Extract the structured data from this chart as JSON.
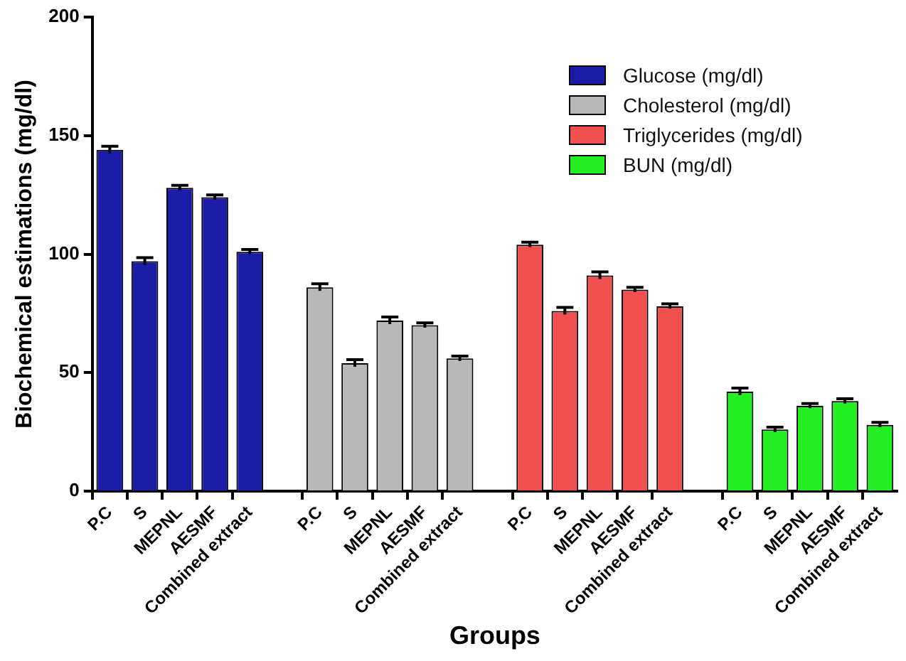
{
  "chart_data": {
    "type": "bar",
    "xlabel": "Groups",
    "ylabel": "Biochemical estimations (mg/dl)",
    "categories": [
      "P.C",
      "S",
      "MEPNL",
      "AESMF",
      "Combined extract",
      null,
      "P.C",
      "S",
      "MEPNL",
      "AESMF",
      "Combined extract",
      null,
      "P.C",
      "S",
      "MEPNL",
      "AESMF",
      "Combined extract",
      null,
      "P.C",
      "S",
      "MEPNL",
      "AESMF",
      "Combined extract"
    ],
    "series": [
      {
        "name": "Glucose (mg/dl)",
        "color": "#1c1ca8",
        "values": [
          144,
          97,
          128,
          124,
          101,
          null,
          null,
          null,
          null,
          null,
          null,
          null,
          null,
          null,
          null,
          null,
          null,
          null,
          null,
          null,
          null,
          null,
          null
        ],
        "errors": [
          1.5,
          1.5,
          1,
          1,
          1,
          null,
          null,
          null,
          null,
          null,
          null,
          null,
          null,
          null,
          null,
          null,
          null,
          null,
          null,
          null,
          null,
          null,
          null
        ]
      },
      {
        "name": "Cholesterol (mg/dl)",
        "color": "#b8b8b8",
        "values": [
          null,
          null,
          null,
          null,
          null,
          null,
          86,
          54,
          72,
          70,
          56,
          null,
          null,
          null,
          null,
          null,
          null,
          null,
          null,
          null,
          null,
          null,
          null
        ],
        "errors": [
          null,
          null,
          null,
          null,
          null,
          null,
          1.5,
          1.5,
          1.5,
          1,
          1,
          null,
          null,
          null,
          null,
          null,
          null,
          null,
          null,
          null,
          null,
          null,
          null
        ]
      },
      {
        "name": "Triglycerides (mg/dl)",
        "color": "#f05050",
        "values": [
          null,
          null,
          null,
          null,
          null,
          null,
          null,
          null,
          null,
          null,
          null,
          null,
          104,
          76,
          91,
          85,
          78,
          null,
          null,
          null,
          null,
          null,
          null
        ],
        "errors": [
          null,
          null,
          null,
          null,
          null,
          null,
          null,
          null,
          null,
          null,
          null,
          null,
          1,
          1.5,
          1.5,
          1,
          1,
          null,
          null,
          null,
          null,
          null,
          null
        ]
      },
      {
        "name": "BUN (mg/dl)",
        "color": "#22ee22",
        "values": [
          null,
          null,
          null,
          null,
          null,
          null,
          null,
          null,
          null,
          null,
          null,
          null,
          null,
          null,
          null,
          null,
          null,
          null,
          42,
          26,
          36,
          38,
          28
        ],
        "errors": [
          null,
          null,
          null,
          null,
          null,
          null,
          null,
          null,
          null,
          null,
          null,
          null,
          null,
          null,
          null,
          null,
          null,
          null,
          1.5,
          1,
          1,
          1,
          1
        ]
      }
    ],
    "ylim": [
      0,
      200
    ],
    "yticks": [
      0,
      50,
      100,
      150,
      200
    ],
    "grid": false,
    "legend": "top right"
  }
}
